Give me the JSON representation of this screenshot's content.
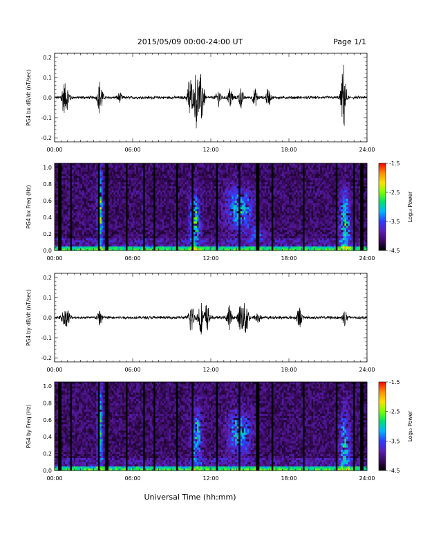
{
  "header": {
    "title": "2015/05/09  00:00-24:00 UT",
    "page": "Page 1/1"
  },
  "colorbar": {
    "label": "Log₁₀ Power",
    "ticks": [
      "-1.5",
      "-2.5",
      "-3.5",
      "-4.5"
    ],
    "values": [
      -1.5,
      -2.5,
      -3.5,
      -4.5
    ],
    "range": [
      -4.5,
      -1.5
    ],
    "colors": [
      "#000000",
      "#3a0a5e",
      "#5a1fb4",
      "#2f3cff",
      "#00b4ff",
      "#00e070",
      "#78ff00",
      "#ffe000",
      "#ff8c00",
      "#ff0000"
    ]
  },
  "xaxis": {
    "ticks": [
      "00:00",
      "06:00",
      "12:00",
      "18:00",
      "24:00"
    ],
    "label": "Universal Time (hh:mm)"
  },
  "chart_data": [
    {
      "type": "line",
      "ylabel": "PG4 bx dB/dt (nT/sec)",
      "yticks": [
        "0.2",
        "0.1",
        "0.0",
        "-0.1",
        "-0.2"
      ],
      "ylim": [
        -0.22,
        0.22
      ],
      "xlim": [
        0,
        24
      ],
      "bursts": [
        {
          "t": 0.7,
          "amp": 0.07
        },
        {
          "t": 1.0,
          "amp": 0.05
        },
        {
          "t": 3.5,
          "amp": 0.09
        },
        {
          "t": 5.0,
          "amp": 0.02
        },
        {
          "t": 10.4,
          "amp": 0.12
        },
        {
          "t": 10.9,
          "amp": 0.15
        },
        {
          "t": 11.3,
          "amp": 0.13
        },
        {
          "t": 12.6,
          "amp": 0.04
        },
        {
          "t": 13.5,
          "amp": 0.05
        },
        {
          "t": 14.3,
          "amp": 0.05
        },
        {
          "t": 15.4,
          "amp": 0.04
        },
        {
          "t": 16.4,
          "amp": 0.04
        },
        {
          "t": 22.2,
          "amp": 0.17
        }
      ]
    },
    {
      "type": "heatmap",
      "ylabel": "PG4 bx Freq (Hz)",
      "yticks": [
        "1.0",
        "0.8",
        "0.6",
        "0.4",
        "0.2",
        "0.0"
      ],
      "ylim": [
        0,
        1.05
      ],
      "xlim": [
        0,
        24
      ],
      "gaps": [
        0.4,
        1.3,
        3.4,
        4.0,
        5.5,
        6.9,
        7.7,
        9.4,
        10.6,
        12.5,
        14.2,
        15.6,
        16.7,
        19.1,
        21.7,
        23.0,
        23.6
      ],
      "features": [
        {
          "t": 3.5,
          "f": 0.5,
          "dt": 0.2,
          "df": 0.5,
          "power": -2.8
        },
        {
          "t": 10.8,
          "f": 0.35,
          "dt": 0.4,
          "df": 0.35,
          "power": -3.0
        },
        {
          "t": 14.2,
          "f": 0.5,
          "dt": 1.0,
          "df": 0.25,
          "power": -3.2
        },
        {
          "t": 15.6,
          "f": 0.2,
          "dt": 0.7,
          "df": 0.1,
          "power": -3.8
        },
        {
          "t": 22.3,
          "f": 0.3,
          "dt": 0.4,
          "df": 0.4,
          "power": -3.0
        }
      ]
    },
    {
      "type": "line",
      "ylabel": "PG4 by dB/dt (nT/sec)",
      "yticks": [
        "0.2",
        "0.1",
        "0.0",
        "-0.1",
        "-0.2"
      ],
      "ylim": [
        -0.22,
        0.22
      ],
      "xlim": [
        0,
        24
      ],
      "bursts": [
        {
          "t": 0.7,
          "amp": 0.03
        },
        {
          "t": 1.0,
          "amp": 0.04
        },
        {
          "t": 3.5,
          "amp": 0.04
        },
        {
          "t": 10.5,
          "amp": 0.08
        },
        {
          "t": 11.2,
          "amp": 0.09
        },
        {
          "t": 11.7,
          "amp": 0.07
        },
        {
          "t": 13.4,
          "amp": 0.06
        },
        {
          "t": 14.3,
          "amp": 0.08
        },
        {
          "t": 14.7,
          "amp": 0.1
        },
        {
          "t": 15.6,
          "amp": 0.03
        },
        {
          "t": 18.8,
          "amp": 0.05
        },
        {
          "t": 22.3,
          "amp": 0.04
        }
      ]
    },
    {
      "type": "heatmap",
      "ylabel": "PG4 by Freq (Hz)",
      "yticks": [
        "1.0",
        "0.8",
        "0.6",
        "0.4",
        "0.2",
        "0.0"
      ],
      "ylim": [
        0,
        1.05
      ],
      "xlim": [
        0,
        24
      ],
      "gaps": [
        0.4,
        1.3,
        3.4,
        4.0,
        5.5,
        6.9,
        7.7,
        9.4,
        10.6,
        12.5,
        14.2,
        15.6,
        16.7,
        19.1,
        21.7,
        23.0,
        23.6
      ],
      "features": [
        {
          "t": 3.5,
          "f": 0.5,
          "dt": 0.2,
          "df": 0.5,
          "power": -3.0
        },
        {
          "t": 10.9,
          "f": 0.4,
          "dt": 0.4,
          "df": 0.35,
          "power": -3.2
        },
        {
          "t": 14.2,
          "f": 0.45,
          "dt": 0.9,
          "df": 0.25,
          "power": -3.3
        },
        {
          "t": 22.3,
          "f": 0.3,
          "dt": 0.4,
          "df": 0.4,
          "power": -3.2
        }
      ]
    }
  ]
}
